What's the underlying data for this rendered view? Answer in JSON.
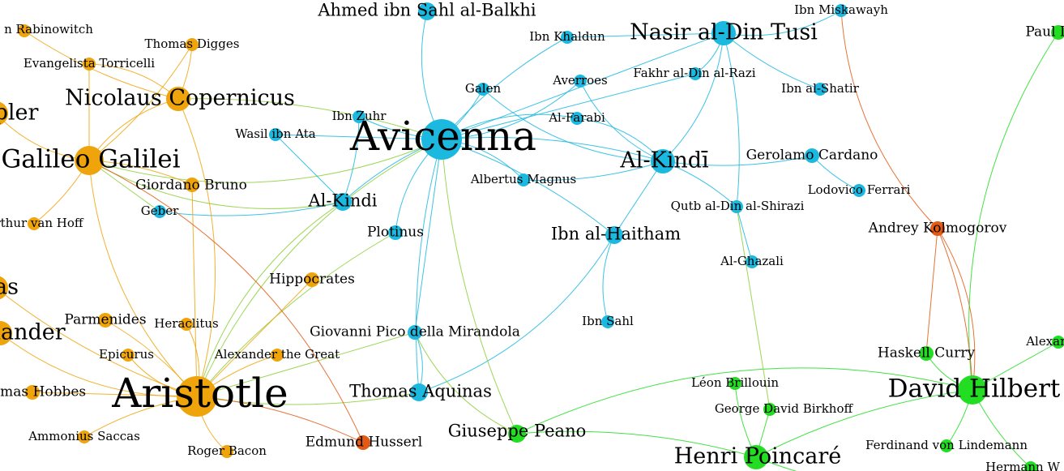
{
  "colors": {
    "blue": "#1bb9e0",
    "orange": "#eea40a",
    "green": "#22dd22",
    "red": "#e25a14"
  },
  "nodes": [
    {
      "id": "rabinowitch",
      "label": "n Rabinowitch",
      "color": "orange",
      "size": "s"
    },
    {
      "id": "digges",
      "label": "Thomas Digges",
      "color": "orange",
      "size": "s"
    },
    {
      "id": "torricelli",
      "label": "Evangelista Torricelli",
      "color": "orange",
      "size": "s"
    },
    {
      "id": "copernicus",
      "label": "Nicolaus Copernicus",
      "color": "orange",
      "size": "m"
    },
    {
      "id": "kepler",
      "label": "pler",
      "color": "orange",
      "size": "m"
    },
    {
      "id": "galileo",
      "label": "Galileo Galilei",
      "color": "orange",
      "size": "l"
    },
    {
      "id": "bruno",
      "label": "Giordano Bruno",
      "color": "orange",
      "size": "s2"
    },
    {
      "id": "vanhoff",
      "label": "rthur van Hoff",
      "color": "orange",
      "size": "s"
    },
    {
      "id": "as",
      "label": "as",
      "color": "orange",
      "size": "m"
    },
    {
      "id": "hippocrates",
      "label": "Hippocrates",
      "color": "orange",
      "size": "s2"
    },
    {
      "id": "parmenides",
      "label": "Parmenides",
      "color": "orange",
      "size": "s2"
    },
    {
      "id": "heraclitus",
      "label": "Heraclitus",
      "color": "orange",
      "size": "s"
    },
    {
      "id": "anaximander",
      "label": "mander",
      "color": "orange",
      "size": "m"
    },
    {
      "id": "epicurus",
      "label": "Epicurus",
      "color": "orange",
      "size": "s"
    },
    {
      "id": "alexander",
      "label": "Alexander the Great",
      "color": "orange",
      "size": "s"
    },
    {
      "id": "hobbes",
      "label": "omas Hobbes",
      "color": "orange",
      "size": "s2"
    },
    {
      "id": "aristotle",
      "label": "Aristotle",
      "color": "orange",
      "size": "xl"
    },
    {
      "id": "saccas",
      "label": "Ammonius Saccas",
      "color": "orange",
      "size": "s"
    },
    {
      "id": "bacon",
      "label": "Roger Bacon",
      "color": "orange",
      "size": "s"
    },
    {
      "id": "balkhi",
      "label": "Ahmed ibn Sahl al-Balkhi",
      "color": "blue",
      "size": "s3"
    },
    {
      "id": "khaldun",
      "label": "Ibn Khaldun",
      "color": "blue",
      "size": "s"
    },
    {
      "id": "tusi",
      "label": "Nasir al-Din Tusi",
      "color": "blue",
      "size": "m"
    },
    {
      "id": "miskawayh",
      "label": "Ibn Miskawayh",
      "color": "blue",
      "size": "s"
    },
    {
      "id": "galen",
      "label": "Galen",
      "color": "blue",
      "size": "s"
    },
    {
      "id": "averroes",
      "label": "Averroes",
      "color": "blue",
      "size": "s"
    },
    {
      "id": "razi",
      "label": "Fakhr al-Din al-Razi",
      "color": "blue",
      "size": "s"
    },
    {
      "id": "shatir",
      "label": "Ibn al-Shatir",
      "color": "blue",
      "size": "s"
    },
    {
      "id": "zuhr",
      "label": "Ibn Zuhr",
      "color": "blue",
      "size": "s"
    },
    {
      "id": "farabi",
      "label": "Al-Farabi",
      "color": "blue",
      "size": "s"
    },
    {
      "id": "wasil",
      "label": "Wasil ibn Ata",
      "color": "blue",
      "size": "s"
    },
    {
      "id": "avicenna",
      "label": "Avicenna",
      "color": "blue",
      "size": "xl"
    },
    {
      "id": "alkindi2",
      "label": "Al-Kindī",
      "color": "blue",
      "size": "m"
    },
    {
      "id": "cardano",
      "label": "Gerolamo Cardano",
      "color": "blue",
      "size": "s2"
    },
    {
      "id": "albertus",
      "label": "Albertus Magnus",
      "color": "blue",
      "size": "s"
    },
    {
      "id": "alkindi",
      "label": "Al-Kindi",
      "color": "blue",
      "size": "s3"
    },
    {
      "id": "geber",
      "label": "Geber",
      "color": "blue",
      "size": "s"
    },
    {
      "id": "ferrari",
      "label": "Lodovico Ferrari",
      "color": "blue",
      "size": "s"
    },
    {
      "id": "shirazi",
      "label": "Qutb al-Din al-Shirazi",
      "color": "blue",
      "size": "s"
    },
    {
      "id": "plotinus",
      "label": "Plotinus",
      "color": "blue",
      "size": "s2"
    },
    {
      "id": "haitham",
      "label": "Ibn al-Haitham",
      "color": "blue",
      "size": "s3"
    },
    {
      "id": "ghazali",
      "label": "Al-Ghazali",
      "color": "blue",
      "size": "s"
    },
    {
      "id": "ibnsahl",
      "label": "Ibn Sahl",
      "color": "blue",
      "size": "s"
    },
    {
      "id": "pico",
      "label": "Giovanni Pico della Mirandola",
      "color": "blue",
      "size": "s2"
    },
    {
      "id": "aquinas",
      "label": "Thomas Aquinas",
      "color": "blue",
      "size": "s3"
    },
    {
      "id": "husserl",
      "label": "Edmund Husserl",
      "color": "red",
      "size": "s2"
    },
    {
      "id": "peano",
      "label": "Giuseppe Peano",
      "color": "green",
      "size": "s3"
    },
    {
      "id": "brillouin",
      "label": "Léon Brillouin",
      "color": "green",
      "size": "s"
    },
    {
      "id": "birkhoff",
      "label": "George David Birkhoff",
      "color": "green",
      "size": "s"
    },
    {
      "id": "poincare",
      "label": "Henri Poincaré",
      "color": "green",
      "size": "m"
    },
    {
      "id": "hilbert",
      "label": "David Hilbert",
      "color": "green",
      "size": "l"
    },
    {
      "id": "curry",
      "label": "Haskell Curry",
      "color": "green",
      "size": "s2"
    },
    {
      "id": "lindemann",
      "label": "Ferdinand von Lindemann",
      "color": "green",
      "size": "s"
    },
    {
      "id": "kolmogorov",
      "label": "Andrey Kolmogorov",
      "color": "red",
      "size": "s2"
    },
    {
      "id": "paul",
      "label": "Paul I",
      "color": "green",
      "size": "s2"
    },
    {
      "id": "alexan",
      "label": "Alexan",
      "color": "green",
      "size": "s"
    },
    {
      "id": "hermann",
      "label": "Hermann W",
      "color": "green",
      "size": "s"
    }
  ],
  "edges": [
    [
      "avicenna",
      "balkhi"
    ],
    [
      "avicenna",
      "khaldun"
    ],
    [
      "avicenna",
      "tusi"
    ],
    [
      "avicenna",
      "galen"
    ],
    [
      "avicenna",
      "averroes"
    ],
    [
      "avicenna",
      "farabi"
    ],
    [
      "avicenna",
      "zuhr"
    ],
    [
      "avicenna",
      "wasil"
    ],
    [
      "avicenna",
      "alkindi"
    ],
    [
      "avicenna",
      "plotinus"
    ],
    [
      "avicenna",
      "albertus"
    ],
    [
      "avicenna",
      "alkindi2"
    ],
    [
      "avicenna",
      "pico"
    ],
    [
      "avicenna",
      "aquinas"
    ],
    [
      "avicenna",
      "aristotle"
    ],
    [
      "avicenna",
      "galileo"
    ],
    [
      "avicenna",
      "haitham"
    ],
    [
      "avicenna",
      "razi"
    ],
    [
      "avicenna",
      "copernicus"
    ],
    [
      "alkindi2",
      "farabi"
    ],
    [
      "alkindi2",
      "averroes"
    ],
    [
      "alkindi2",
      "shirazi"
    ],
    [
      "alkindi2",
      "haitham"
    ],
    [
      "alkindi2",
      "cardano"
    ],
    [
      "alkindi2",
      "tusi"
    ],
    [
      "alkindi2",
      "galen"
    ],
    [
      "alkindi2",
      "albertus"
    ],
    [
      "tusi",
      "khaldun"
    ],
    [
      "tusi",
      "shatir"
    ],
    [
      "tusi",
      "miskawayh"
    ],
    [
      "tusi",
      "razi"
    ],
    [
      "tusi",
      "shirazi"
    ],
    [
      "shirazi",
      "ghazali"
    ],
    [
      "cardano",
      "ferrari"
    ],
    [
      "haitham",
      "ibnsahl"
    ],
    [
      "haitham",
      "aquinas"
    ],
    [
      "alkindi",
      "geber"
    ],
    [
      "alkindi",
      "wasil"
    ],
    [
      "alkindi",
      "zuhr"
    ],
    [
      "alkindi",
      "aristotle"
    ],
    [
      "alkindi",
      "galileo"
    ],
    [
      "aquinas",
      "aristotle"
    ],
    [
      "pico",
      "aristotle"
    ],
    [
      "plotinus",
      "aristotle"
    ],
    [
      "aquinas",
      "pico"
    ],
    [
      "galileo",
      "copernicus"
    ],
    [
      "galileo",
      "bruno"
    ],
    [
      "galileo",
      "torricelli"
    ],
    [
      "galileo",
      "digges"
    ],
    [
      "galileo",
      "aristotle"
    ],
    [
      "galileo",
      "kepler"
    ],
    [
      "galileo",
      "vanhoff"
    ],
    [
      "galileo",
      "geber"
    ],
    [
      "copernicus",
      "digges"
    ],
    [
      "copernicus",
      "torricelli"
    ],
    [
      "copernicus",
      "aristotle"
    ],
    [
      "copernicus",
      "rabinowitch"
    ],
    [
      "aristotle",
      "hippocrates"
    ],
    [
      "aristotle",
      "parmenides"
    ],
    [
      "aristotle",
      "heraclitus"
    ],
    [
      "aristotle",
      "epicurus"
    ],
    [
      "aristotle",
      "alexander"
    ],
    [
      "aristotle",
      "hobbes"
    ],
    [
      "aristotle",
      "saccas"
    ],
    [
      "aristotle",
      "bacon"
    ],
    [
      "aristotle",
      "anaximander"
    ],
    [
      "aristotle",
      "as"
    ],
    [
      "aristotle",
      "bruno"
    ],
    [
      "hilbert",
      "poincare"
    ],
    [
      "hilbert",
      "peano"
    ],
    [
      "hilbert",
      "curry"
    ],
    [
      "hilbert",
      "lindemann"
    ],
    [
      "hilbert",
      "alexan"
    ],
    [
      "hilbert",
      "hermann"
    ],
    [
      "hilbert",
      "kolmogorov"
    ],
    [
      "hilbert",
      "paul"
    ],
    [
      "poincare",
      "brillouin"
    ],
    [
      "poincare",
      "birkhoff"
    ],
    [
      "poincare",
      "peano"
    ],
    [
      "poincare",
      "hermann"
    ],
    [
      "peano",
      "pico"
    ],
    [
      "peano",
      "avicenna"
    ],
    [
      "curry",
      "kolmogorov"
    ],
    [
      "husserl",
      "aristotle"
    ],
    [
      "husserl",
      "galileo"
    ],
    [
      "kolmogorov",
      "miskawayh"
    ],
    [
      "kolmogorov",
      "hilbert"
    ],
    [
      "birkhoff",
      "shirazi"
    ]
  ]
}
